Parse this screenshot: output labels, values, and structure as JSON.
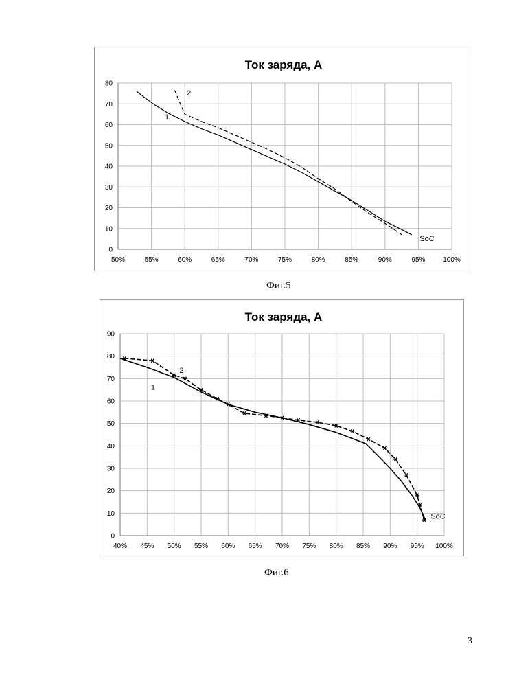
{
  "chart_data": [
    {
      "type": "line",
      "title": "Ток заряда, А",
      "xlabel": "",
      "ylabel": "",
      "xlim": [
        50,
        100
      ],
      "ylim": [
        0,
        80
      ],
      "x_ticks": [
        "50%",
        "55%",
        "60%",
        "65%",
        "70%",
        "75%",
        "80%",
        "85%",
        "90%",
        "95%",
        "100%"
      ],
      "y_ticks": [
        "0",
        "10",
        "20",
        "30",
        "40",
        "50",
        "60",
        "70",
        "80"
      ],
      "grid": true,
      "legend": "none",
      "series": [
        {
          "name": "1",
          "style": "solid",
          "x": [
            52.8,
            54,
            55.5,
            57.5,
            60,
            62.5,
            65,
            67.5,
            70,
            72.5,
            75,
            77.5,
            80,
            82.5,
            85,
            87.5,
            90,
            92.5,
            94
          ],
          "y": [
            76,
            73,
            69.5,
            65.5,
            61.5,
            58,
            55,
            51.5,
            48,
            44.5,
            41,
            37,
            32.5,
            28,
            23.5,
            18.5,
            13.5,
            9.5,
            7
          ]
        },
        {
          "name": "2",
          "style": "dashed",
          "x": [
            58.5,
            59.2,
            60,
            62.5,
            65,
            67.5,
            70,
            72.5,
            75,
            77.5,
            80,
            82.5,
            85,
            87.5,
            90,
            92.5
          ],
          "y": [
            76.5,
            71,
            65,
            61.5,
            58.5,
            55,
            51.5,
            48,
            44,
            39.5,
            34,
            29,
            23,
            17.5,
            12.5,
            7
          ]
        }
      ],
      "annotations": [
        {
          "text": "1",
          "x": 57,
          "y": 62.5
        },
        {
          "text": "2",
          "x": 60.3,
          "y": 74
        },
        {
          "text": "SoC",
          "x": 95.2,
          "y": 4
        }
      ]
    },
    {
      "type": "line",
      "title": "Ток заряда, А",
      "xlabel": "",
      "ylabel": "",
      "xlim": [
        40,
        100
      ],
      "ylim": [
        0,
        90
      ],
      "x_ticks": [
        "40%",
        "45%",
        "50%",
        "55%",
        "60%",
        "65%",
        "70%",
        "75%",
        "80%",
        "85%",
        "90%",
        "95%",
        "100%"
      ],
      "y_ticks": [
        "0",
        "10",
        "20",
        "30",
        "40",
        "50",
        "60",
        "70",
        "80",
        "90"
      ],
      "grid": true,
      "legend": "none",
      "series": [
        {
          "name": "1",
          "style": "solid",
          "x": [
            40,
            45,
            50,
            55,
            60,
            65,
            70,
            75,
            80,
            85.5,
            88,
            90,
            92,
            94,
            95.5,
            96.5
          ],
          "y": [
            79,
            75,
            70.5,
            64,
            58.5,
            55,
            52.5,
            49.5,
            46,
            41,
            35,
            30,
            24.5,
            18,
            12.5,
            7
          ]
        },
        {
          "name": "2",
          "style": "dashed",
          "marker": "asterisk",
          "x": [
            40.8,
            46,
            50,
            52,
            55,
            58,
            60,
            63,
            67,
            70,
            73,
            76.5,
            80,
            83,
            86,
            89,
            91,
            93,
            95,
            95.5,
            96.3
          ],
          "y": [
            79,
            78,
            71.5,
            70,
            65,
            61,
            58.5,
            54.5,
            53.5,
            52.5,
            51.5,
            50.5,
            49,
            46.5,
            43,
            39,
            34,
            27,
            18,
            13.5,
            7
          ]
        }
      ],
      "annotations": [
        {
          "text": "1",
          "x": 45.7,
          "y": 65
        },
        {
          "text": "2",
          "x": 51,
          "y": 72.5
        },
        {
          "text": "SoC",
          "x": 97.5,
          "y": 7.5
        }
      ]
    }
  ],
  "captions": [
    "Фиг.5",
    "Фиг.6"
  ],
  "page_number": "3"
}
